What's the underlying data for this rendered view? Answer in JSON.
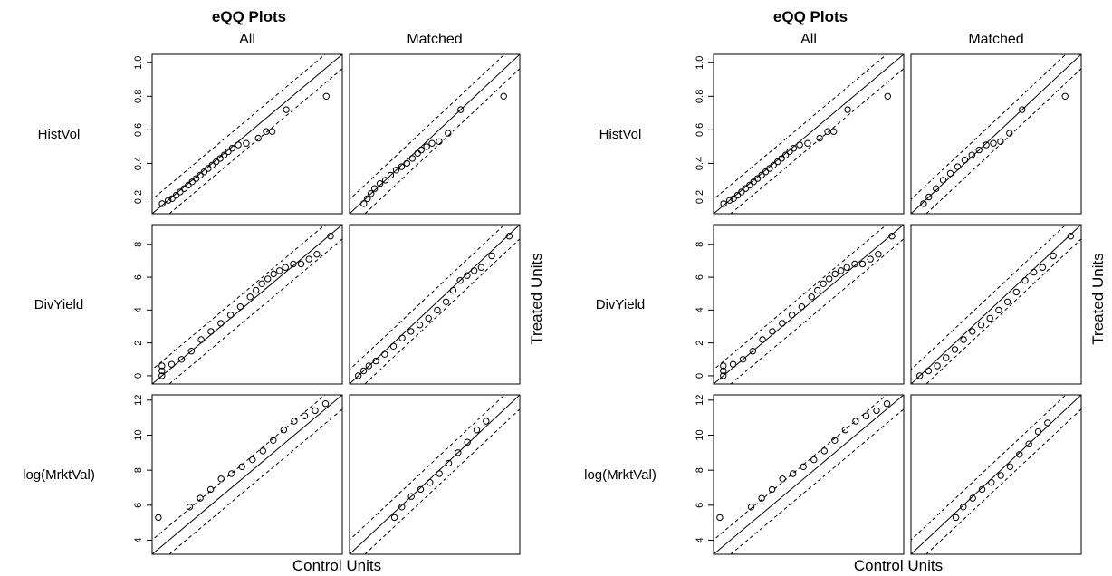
{
  "figures": [
    {
      "title": "eQQ Plots",
      "column_headers": [
        "All",
        "Matched"
      ],
      "row_labels": [
        "HistVol",
        "DivYield",
        "log(MrktVal)"
      ],
      "xlabel": "Control Units",
      "ylabel": "Treated Units"
    },
    {
      "title": "eQQ Plots",
      "column_headers": [
        "All",
        "Matched"
      ],
      "row_labels": [
        "HistVol",
        "DivYield",
        "log(MrktVal)"
      ],
      "xlabel": "Control Units",
      "ylabel": "Treated Units"
    }
  ],
  "chart_data": [
    {
      "type": "scatter",
      "title": "eQQ Plots",
      "xlabel": "Control Units",
      "ylabel": "Treated Units",
      "reference_lines": "y = x (solid) with dashed tolerance bands",
      "panels": [
        {
          "row": "HistVol",
          "column": "All",
          "yticks": [
            0.2,
            0.4,
            0.6,
            0.8,
            1.0
          ],
          "ylim": [
            0.1,
            1.05
          ],
          "x": [
            0.15,
            0.18,
            0.2,
            0.22,
            0.24,
            0.26,
            0.28,
            0.3,
            0.32,
            0.34,
            0.36,
            0.38,
            0.4,
            0.42,
            0.44,
            0.46,
            0.48,
            0.5,
            0.53,
            0.57,
            0.63,
            0.67,
            0.7,
            0.77,
            0.97
          ],
          "y": [
            0.16,
            0.18,
            0.19,
            0.21,
            0.23,
            0.25,
            0.27,
            0.29,
            0.31,
            0.33,
            0.35,
            0.37,
            0.39,
            0.41,
            0.43,
            0.45,
            0.47,
            0.49,
            0.51,
            0.52,
            0.55,
            0.59,
            0.59,
            0.72,
            0.8
          ]
        },
        {
          "row": "HistVol",
          "column": "Matched",
          "yticks": [
            0.2,
            0.4,
            0.6,
            0.8,
            1.0
          ],
          "ylim": [
            0.1,
            1.05
          ],
          "x": [
            0.18,
            0.2,
            0.22,
            0.24,
            0.27,
            0.3,
            0.33,
            0.36,
            0.39,
            0.42,
            0.45,
            0.48,
            0.5,
            0.53,
            0.56,
            0.6,
            0.65,
            0.72,
            0.96
          ],
          "y": [
            0.16,
            0.19,
            0.22,
            0.25,
            0.28,
            0.3,
            0.33,
            0.36,
            0.38,
            0.4,
            0.43,
            0.46,
            0.48,
            0.5,
            0.52,
            0.53,
            0.58,
            0.72,
            0.8
          ]
        },
        {
          "row": "DivYield",
          "column": "All",
          "yticks": [
            0,
            2,
            4,
            6,
            8
          ],
          "ylim": [
            -0.5,
            9.2
          ],
          "x": [
            0,
            0,
            0,
            0.5,
            1,
            1.5,
            2,
            2.5,
            3,
            3.5,
            4,
            4.5,
            4.8,
            5.1,
            5.4,
            5.7,
            6,
            6.3,
            6.7,
            7.1,
            7.5,
            7.9,
            8.6
          ],
          "y": [
            0,
            0.3,
            0.6,
            0.7,
            1,
            1.5,
            2.2,
            2.7,
            3.2,
            3.7,
            4.2,
            4.8,
            5.2,
            5.6,
            5.9,
            6.2,
            6.4,
            6.6,
            6.8,
            6.8,
            7.1,
            7.4,
            8.5
          ]
        },
        {
          "row": "DivYield",
          "column": "Matched",
          "yticks": [
            0,
            2,
            4,
            6,
            8
          ],
          "ylim": [
            -0.5,
            9.2
          ],
          "x": [
            0,
            0.3,
            0.6,
            1,
            1.5,
            2,
            2.5,
            3,
            3.5,
            4,
            4.5,
            5,
            5.4,
            5.8,
            6.2,
            6.6,
            7,
            7.6,
            8.6
          ],
          "y": [
            0,
            0.3,
            0.6,
            0.9,
            1.3,
            1.8,
            2.3,
            2.7,
            3.1,
            3.5,
            4,
            4.5,
            5.2,
            5.8,
            6.1,
            6.4,
            6.6,
            7.3,
            8.5
          ]
        },
        {
          "row": "log(MrktVal)",
          "column": "All",
          "yticks": [
            4,
            6,
            8,
            10,
            12
          ],
          "ylim": [
            3.2,
            12.3
          ],
          "x": [
            3.5,
            5,
            5.5,
            6,
            6.5,
            7,
            7.5,
            8,
            8.5,
            9,
            9.5,
            10,
            10.5,
            11,
            11.5
          ],
          "y": [
            5.3,
            5.9,
            6.4,
            6.9,
            7.5,
            7.8,
            8.2,
            8.6,
            9.1,
            9.7,
            10.3,
            10.8,
            11.1,
            11.4,
            11.8
          ]
        },
        {
          "row": "log(MrktVal)",
          "column": "Matched",
          "yticks": [
            4,
            6,
            8,
            10,
            12
          ],
          "ylim": [
            3.2,
            12.3
          ],
          "x": [
            5.6,
            6,
            6.5,
            7,
            7.5,
            8,
            8.5,
            9,
            9.5,
            10,
            10.5
          ],
          "y": [
            5.3,
            5.9,
            6.5,
            6.9,
            7.3,
            7.8,
            8.4,
            9,
            9.6,
            10.3,
            10.8
          ]
        }
      ]
    },
    {
      "type": "scatter",
      "title": "eQQ Plots",
      "xlabel": "Control Units",
      "ylabel": "Treated Units",
      "reference_lines": "y = x (solid) with dashed tolerance bands",
      "panels": [
        {
          "row": "HistVol",
          "column": "All",
          "yticks": [
            0.2,
            0.4,
            0.6,
            0.8,
            1.0
          ],
          "ylim": [
            0.1,
            1.05
          ],
          "x": [
            0.15,
            0.18,
            0.2,
            0.22,
            0.24,
            0.26,
            0.28,
            0.3,
            0.32,
            0.34,
            0.36,
            0.38,
            0.4,
            0.42,
            0.44,
            0.46,
            0.48,
            0.5,
            0.53,
            0.57,
            0.63,
            0.67,
            0.7,
            0.77,
            0.97
          ],
          "y": [
            0.16,
            0.18,
            0.19,
            0.21,
            0.23,
            0.25,
            0.27,
            0.29,
            0.31,
            0.33,
            0.35,
            0.37,
            0.39,
            0.41,
            0.43,
            0.45,
            0.47,
            0.49,
            0.51,
            0.52,
            0.55,
            0.59,
            0.59,
            0.72,
            0.8
          ]
        },
        {
          "row": "HistVol",
          "column": "Matched",
          "yticks": [
            0.2,
            0.4,
            0.6,
            0.8,
            1.0
          ],
          "ylim": [
            0.1,
            1.05
          ],
          "x": [
            0.17,
            0.2,
            0.24,
            0.28,
            0.32,
            0.36,
            0.4,
            0.44,
            0.48,
            0.52,
            0.56,
            0.6,
            0.65,
            0.72,
            0.96
          ],
          "y": [
            0.16,
            0.2,
            0.25,
            0.3,
            0.34,
            0.38,
            0.42,
            0.45,
            0.48,
            0.51,
            0.52,
            0.53,
            0.58,
            0.72,
            0.8
          ]
        },
        {
          "row": "DivYield",
          "column": "All",
          "yticks": [
            0,
            2,
            4,
            6,
            8
          ],
          "ylim": [
            -0.5,
            9.2
          ],
          "x": [
            0,
            0,
            0,
            0.5,
            1,
            1.5,
            2,
            2.5,
            3,
            3.5,
            4,
            4.5,
            4.8,
            5.1,
            5.4,
            5.7,
            6,
            6.3,
            6.7,
            7.1,
            7.5,
            7.9,
            8.6
          ],
          "y": [
            0,
            0.3,
            0.6,
            0.7,
            1,
            1.5,
            2.2,
            2.7,
            3.2,
            3.7,
            4.2,
            4.8,
            5.2,
            5.6,
            5.9,
            6.2,
            6.4,
            6.6,
            6.8,
            6.8,
            7.1,
            7.4,
            8.5
          ]
        },
        {
          "row": "DivYield",
          "column": "Matched",
          "yticks": [
            0,
            2,
            4,
            6,
            8
          ],
          "ylim": [
            -0.5,
            9.2
          ],
          "x": [
            0,
            0.5,
            1,
            1.5,
            2,
            2.5,
            3,
            3.5,
            4,
            4.5,
            5,
            5.5,
            6,
            6.5,
            7,
            7.6,
            8.6
          ],
          "y": [
            0,
            0.3,
            0.6,
            1.1,
            1.6,
            2.2,
            2.7,
            3.1,
            3.5,
            4,
            4.5,
            5.1,
            5.8,
            6.3,
            6.6,
            7.3,
            8.5
          ]
        },
        {
          "row": "log(MrktVal)",
          "column": "All",
          "yticks": [
            4,
            6,
            8,
            10,
            12
          ],
          "ylim": [
            3.2,
            12.3
          ],
          "x": [
            3.5,
            5,
            5.5,
            6,
            6.5,
            7,
            7.5,
            8,
            8.5,
            9,
            9.5,
            10,
            10.5,
            11,
            11.5
          ],
          "y": [
            5.3,
            5.9,
            6.4,
            6.9,
            7.5,
            7.8,
            8.2,
            8.6,
            9.1,
            9.7,
            10.3,
            10.8,
            11.1,
            11.4,
            11.8
          ]
        },
        {
          "row": "log(MrktVal)",
          "column": "Matched",
          "yticks": [
            4,
            6,
            8,
            10,
            12
          ],
          "ylim": [
            3.2,
            12.3
          ],
          "x": [
            5.6,
            6,
            6.5,
            7,
            7.5,
            8,
            8.5,
            9,
            9.5,
            10,
            10.5
          ],
          "y": [
            5.3,
            5.9,
            6.4,
            6.9,
            7.3,
            7.7,
            8.2,
            8.9,
            9.5,
            10.2,
            10.7
          ]
        }
      ]
    }
  ]
}
